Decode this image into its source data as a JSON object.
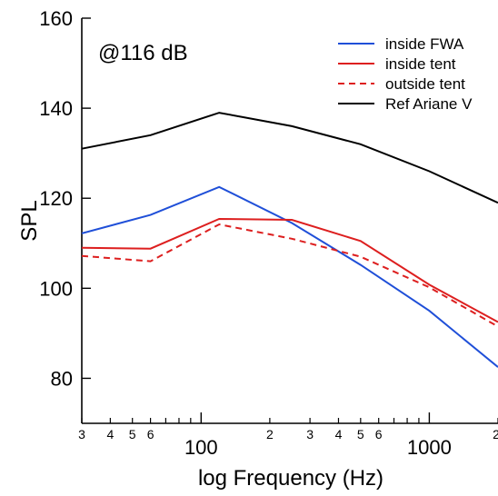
{
  "chart_data": {
    "type": "line",
    "title": "",
    "annotation": "@116 dB",
    "xlabel": "log Frequency (Hz)",
    "ylabel": "SPL",
    "x_scale": "log",
    "xlim": [
      30,
      2000
    ],
    "ylim": [
      70,
      160
    ],
    "y_ticks": [
      80,
      100,
      120,
      140,
      160
    ],
    "x_major_ticks": [
      {
        "value": 100,
        "label": "100"
      },
      {
        "value": 1000,
        "label": "1000"
      }
    ],
    "x_minor_ticks": [
      {
        "value": 30,
        "label": "3"
      },
      {
        "value": 40,
        "label": "4"
      },
      {
        "value": 50,
        "label": "5"
      },
      {
        "value": 60,
        "label": "6"
      },
      {
        "value": 70,
        "label": ""
      },
      {
        "value": 80,
        "label": ""
      },
      {
        "value": 90,
        "label": ""
      },
      {
        "value": 200,
        "label": "2"
      },
      {
        "value": 300,
        "label": "3"
      },
      {
        "value": 400,
        "label": "4"
      },
      {
        "value": 500,
        "label": "5"
      },
      {
        "value": 600,
        "label": "6"
      },
      {
        "value": 700,
        "label": ""
      },
      {
        "value": 800,
        "label": ""
      },
      {
        "value": 900,
        "label": ""
      },
      {
        "value": 2000,
        "label": "2"
      }
    ],
    "grid": false,
    "legend_position": "top-right",
    "series": [
      {
        "name": "inside FWA",
        "color": "#1f4fd8",
        "dash": "solid",
        "x": [
          30,
          60,
          120,
          250,
          500,
          1000,
          2000
        ],
        "y": [
          112.2,
          116.3,
          122.5,
          114.5,
          105.2,
          95.0,
          82.5
        ]
      },
      {
        "name": "inside tent",
        "color": "#dd1f1f",
        "dash": "solid",
        "x": [
          30,
          60,
          120,
          250,
          500,
          1000,
          2000
        ],
        "y": [
          109.0,
          108.8,
          115.4,
          115.2,
          110.5,
          100.8,
          92.5
        ]
      },
      {
        "name": "outside tent",
        "color": "#dd1f1f",
        "dash": "dashed",
        "x": [
          30,
          60,
          120,
          250,
          500,
          1000,
          2000
        ],
        "y": [
          107.2,
          106.0,
          114.2,
          111.0,
          107.0,
          100.2,
          91.5
        ]
      },
      {
        "name": "Ref Ariane V",
        "color": "#000000",
        "dash": "solid",
        "x": [
          30,
          60,
          120,
          250,
          500,
          1000,
          2000
        ],
        "y": [
          131.0,
          134.0,
          139.0,
          136.0,
          132.0,
          126.0,
          119.0
        ]
      }
    ]
  }
}
